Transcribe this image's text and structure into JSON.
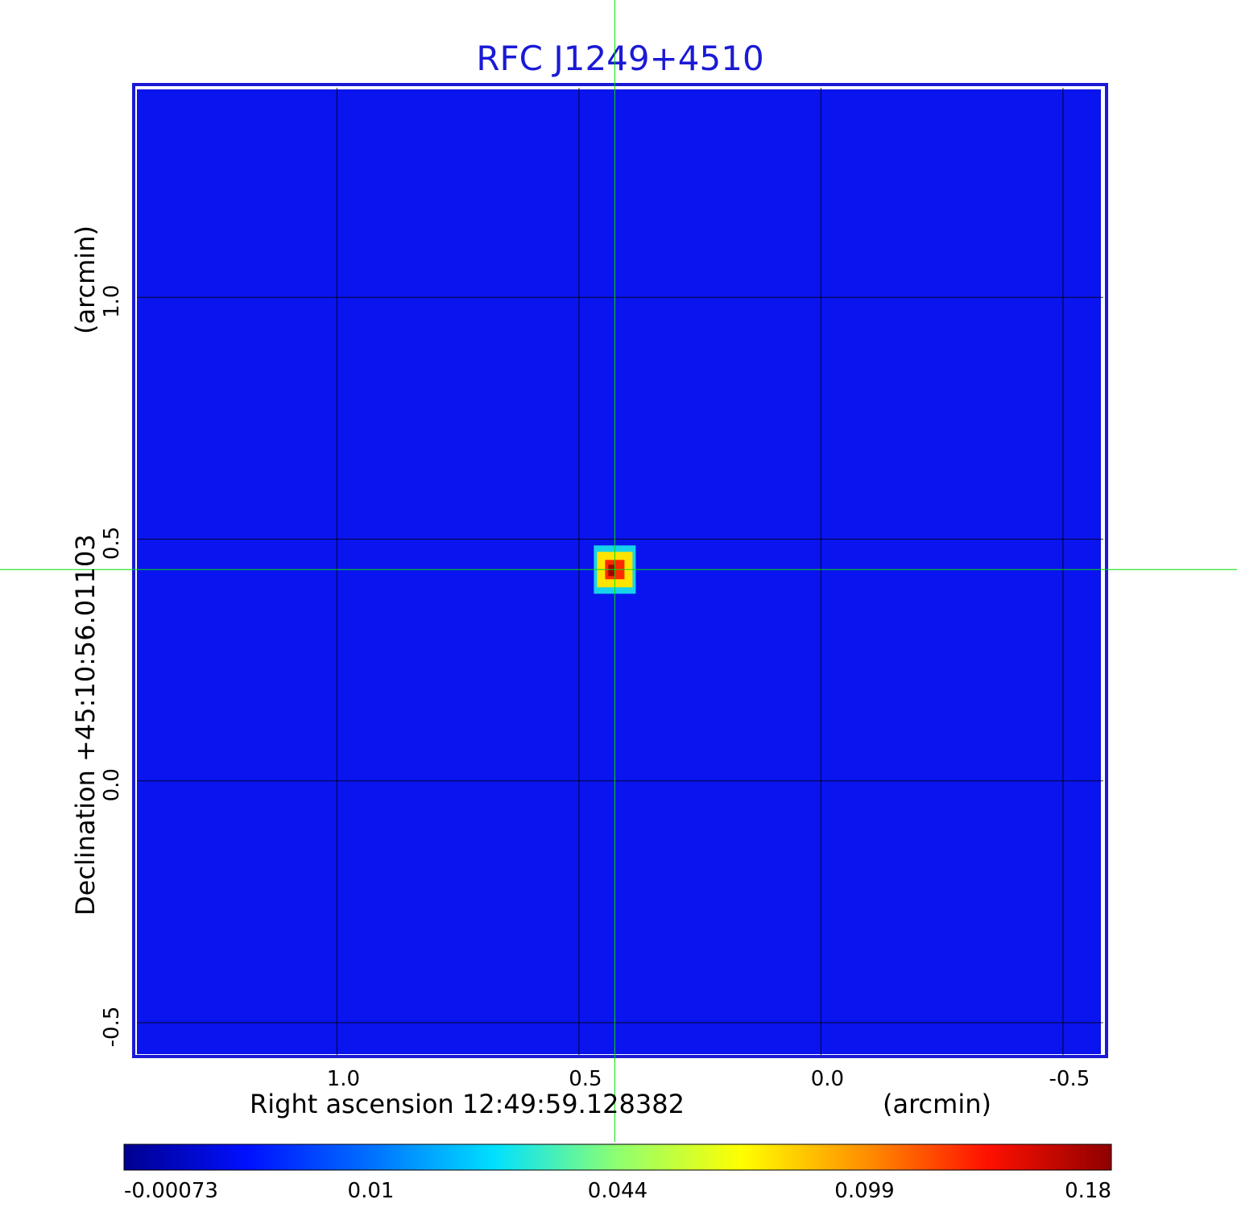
{
  "chart_data": {
    "type": "heatmap",
    "title": "RFC J1249+4510",
    "xlabel": "Right ascension  12:49:59.128382",
    "xunit": "(arcmin)",
    "ylabel": "Declination  +45:10:56.01103",
    "yunit": "(arcmin)",
    "x_ticks": [
      "1.0",
      "0.5",
      "0.0",
      "-0.5"
    ],
    "y_ticks": [
      "1.0",
      "0.5",
      "0.0",
      "-0.5"
    ],
    "x_tick_values": [
      1.0,
      0.5,
      0.0,
      -0.5
    ],
    "y_tick_values": [
      1.0,
      0.5,
      0.0,
      -0.5
    ],
    "xlim": [
      1.42,
      -0.59
    ],
    "ylim": [
      -0.57,
      1.44
    ],
    "grid": true,
    "crosshair": {
      "x": 0.426,
      "y": 0.437,
      "color": "#00e000"
    },
    "source_peak": {
      "x": 0.426,
      "y": 0.437,
      "value": 0.18
    },
    "background_color": "#0a14ee",
    "colorbar": {
      "ticks": [
        "-0.00073",
        "0.01",
        "0.044",
        "0.099",
        "0.18"
      ],
      "min": -0.00073,
      "max": 0.18,
      "colormap": "jet"
    },
    "title_color": "#1a1ad6"
  }
}
